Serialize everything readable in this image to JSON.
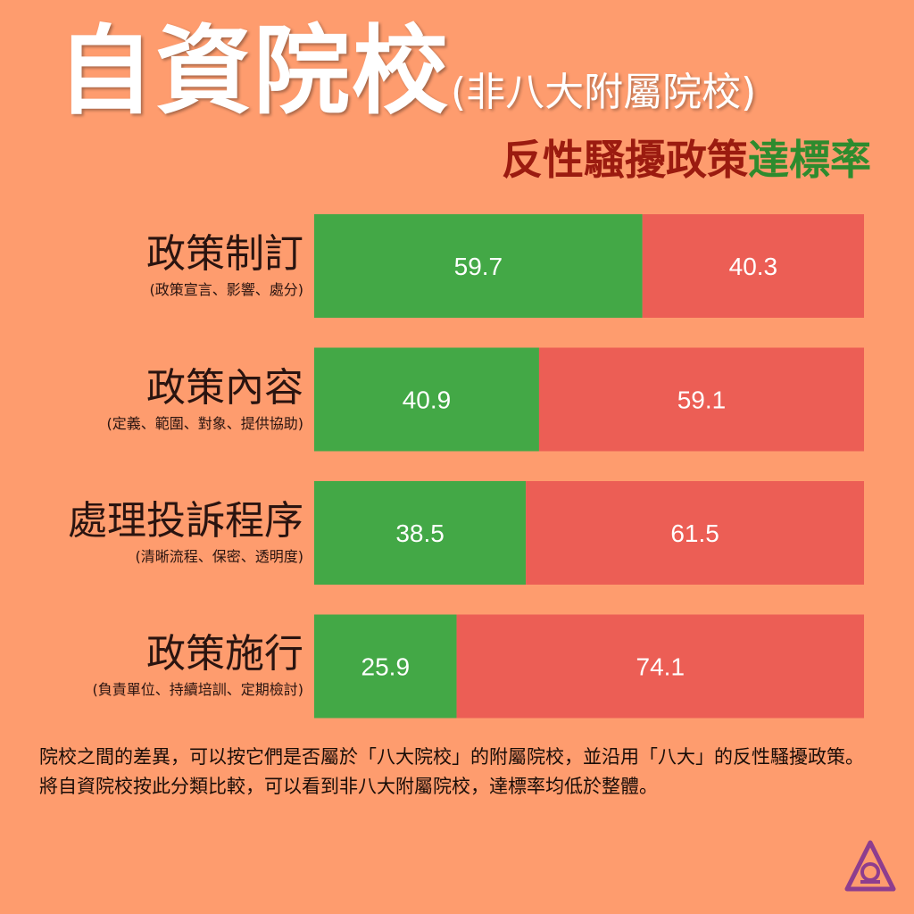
{
  "title": "自資院校",
  "title_note": "(非八大附屬院校)",
  "subtitle_part1": "反性騷擾政策",
  "subtitle_part2": "達標率",
  "colors": {
    "pass": "#43A846",
    "fail": "#EC5E55",
    "background": "#FE9C6E"
  },
  "chart_data": {
    "type": "bar",
    "stacked": true,
    "orientation": "horizontal",
    "categories": [
      "政策制訂",
      "政策內容",
      "處理投訴程序",
      "政策施行"
    ],
    "category_notes": [
      "(政策宣言、影響、處分)",
      "(定義、範圍、對象、提供協助)",
      "(清晰流程、保密、透明度)",
      "(負責單位、持續培訓、定期檢討)"
    ],
    "series": [
      {
        "values": [
          59.7,
          40.9,
          38.5,
          25.9
        ],
        "color": "#43A846"
      },
      {
        "values": [
          40.3,
          59.1,
          61.5,
          74.1
        ],
        "color": "#EC5E55"
      }
    ],
    "xlim": [
      0,
      100
    ],
    "grid": false
  },
  "footnote": "院校之間的差異，可以按它們是否屬於「八大院校」的附屬院校，並沿用「八大」的反性騷擾政策。將自資院校按此分類比較，可以看到非八大附屬院校，達標率均低於整體。",
  "logo_icon": "triangle-circle-logo-icon"
}
